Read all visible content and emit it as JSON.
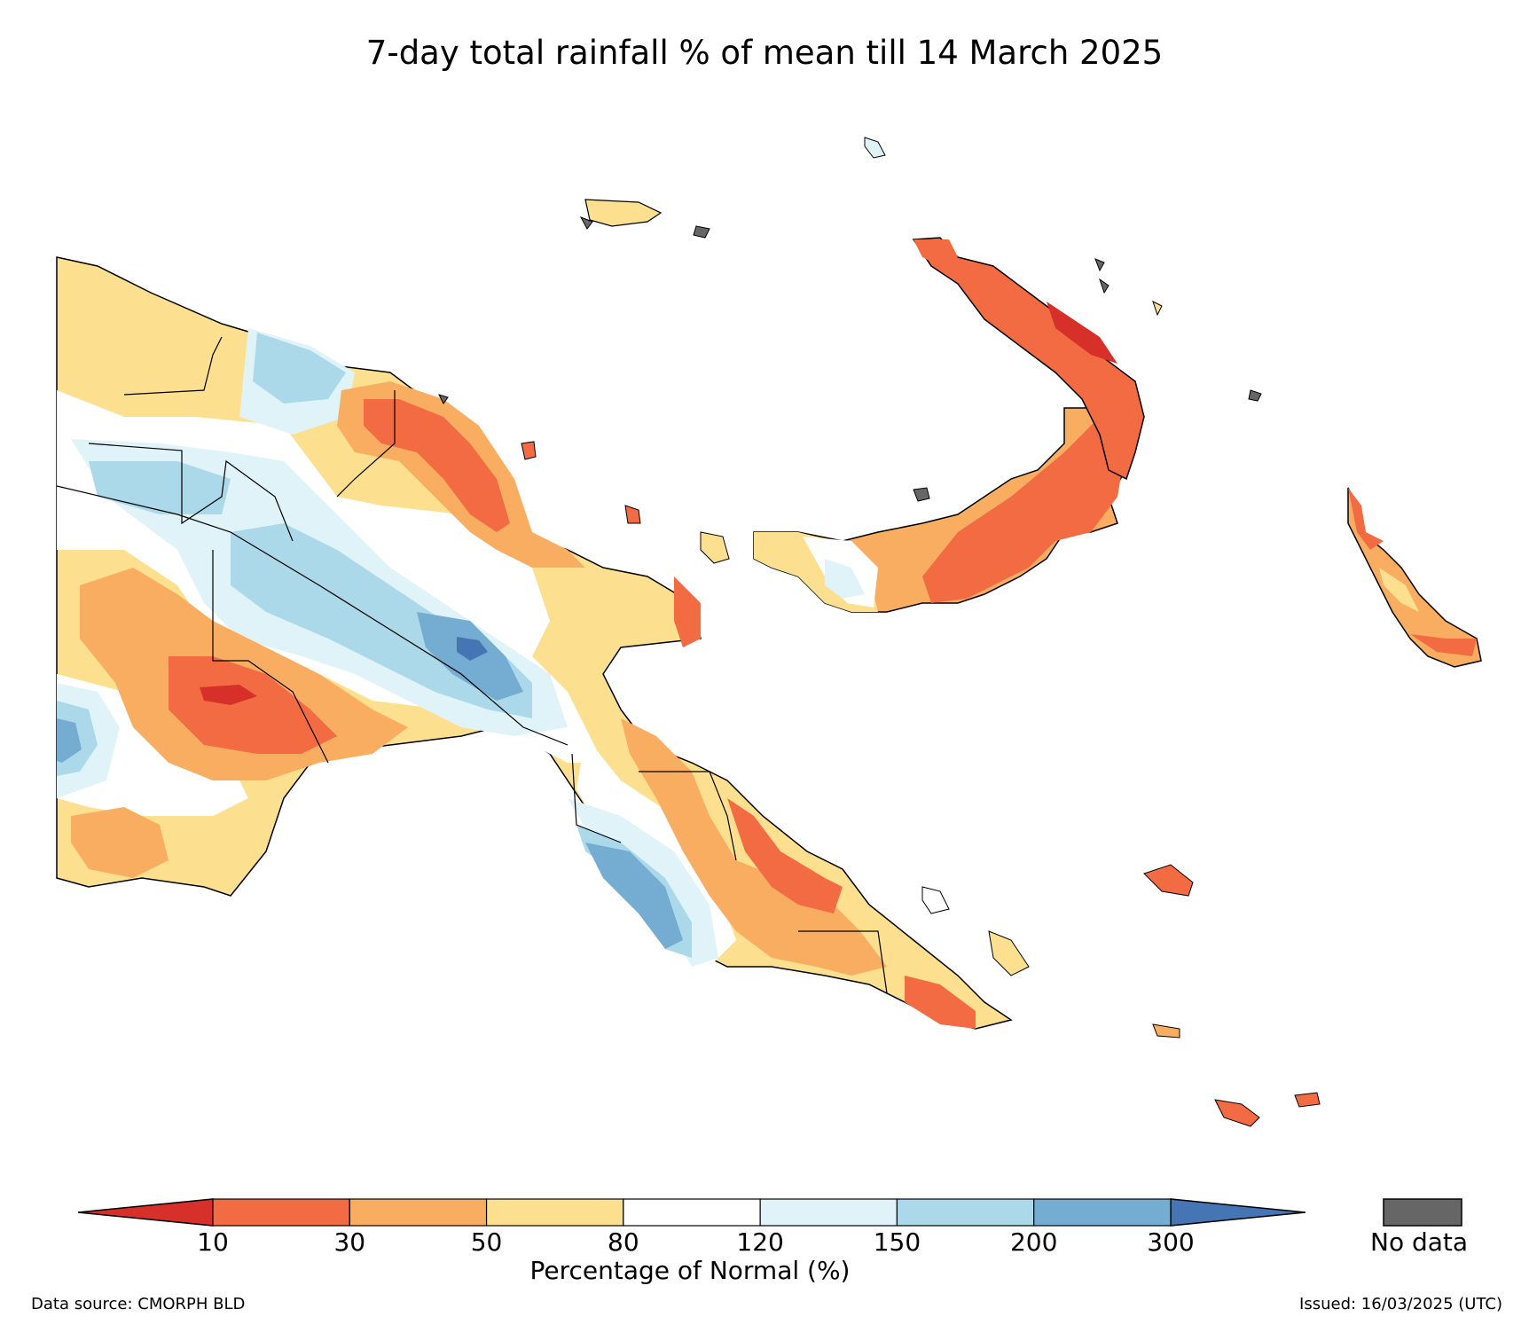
{
  "title": "7-day total rainfall % of mean till 14 March 2025",
  "colorbar": {
    "label": "Percentage of Normal (%)",
    "ticks": [
      "10",
      "30",
      "50",
      "80",
      "120",
      "150",
      "200",
      "300"
    ],
    "bins": [
      {
        "range": "<10",
        "color": "#d7302b"
      },
      {
        "range": "10-30",
        "color": "#f26b43"
      },
      {
        "range": "30-50",
        "color": "#f9ad61"
      },
      {
        "range": "50-80",
        "color": "#fde08f"
      },
      {
        "range": "80-120",
        "color": "#ffffff"
      },
      {
        "range": "120-150",
        "color": "#e0f3f8"
      },
      {
        "range": "150-200",
        "color": "#abd9e9"
      },
      {
        "range": "200-300",
        "color": "#74add1"
      },
      {
        "range": ">300",
        "color": "#4575b4"
      }
    ]
  },
  "no_data": {
    "label": "No data",
    "color": "#666666"
  },
  "source": "Data source: CMORPH BLD",
  "issued": "Issued: 16/03/2025 (UTC)"
}
